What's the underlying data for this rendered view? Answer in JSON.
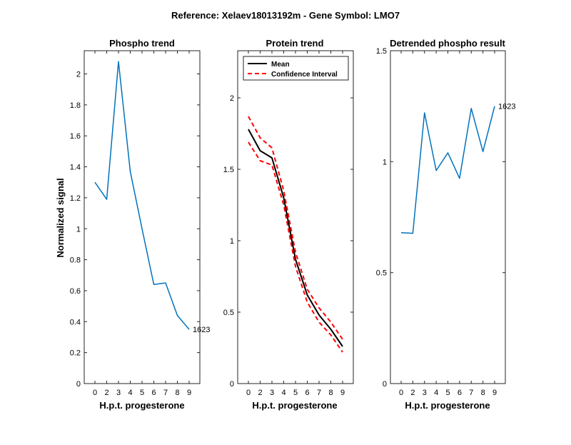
{
  "suptitle": "Reference:  Xelaev18013192m - Gene Symbol:  LMO7",
  "colors": {
    "series": "#0072BD",
    "mean": "#000000",
    "ci": "#FF0000",
    "axis": "#262626"
  },
  "chart_data": [
    {
      "type": "line",
      "title": "Phospho trend",
      "xlabel": "H.p.t. progesterone",
      "ylabel": "Normalized signal",
      "categories": [
        "0",
        "2",
        "3",
        "4",
        "5",
        "6",
        "7",
        "8",
        "9"
      ],
      "ylim": [
        0,
        2.15
      ],
      "yticks": [
        0,
        0.2,
        0.4,
        0.6,
        0.8,
        1,
        1.2,
        1.4,
        1.6,
        1.8,
        2
      ],
      "ytick_labels": [
        "0",
        "0.2",
        "0.4",
        "0.6",
        "0.8",
        "1",
        "1.2",
        "1.4",
        "1.6",
        "1.8",
        "2"
      ],
      "series": [
        {
          "name": "1623",
          "values": [
            1.3,
            1.19,
            2.08,
            1.37,
            1.0,
            0.64,
            0.65,
            0.44,
            0.35
          ]
        }
      ],
      "end_label": "1623"
    },
    {
      "type": "line",
      "title": "Protein trend",
      "xlabel": "H.p.t. progesterone",
      "ylabel": "",
      "categories": [
        "0",
        "2",
        "3",
        "4",
        "5",
        "6",
        "7",
        "8",
        "9"
      ],
      "ylim": [
        0,
        2.33
      ],
      "yticks": [
        0,
        0.5,
        1,
        1.5,
        2
      ],
      "ytick_labels": [
        "0",
        "0.5",
        "1",
        "1.5",
        "2"
      ],
      "series": [
        {
          "name": "Mean",
          "values": [
            1.78,
            1.63,
            1.58,
            1.3,
            0.87,
            0.62,
            0.48,
            0.38,
            0.26
          ]
        },
        {
          "name": "CI upper",
          "values": [
            1.87,
            1.72,
            1.65,
            1.35,
            0.92,
            0.66,
            0.53,
            0.43,
            0.31
          ]
        },
        {
          "name": "CI lower",
          "values": [
            1.69,
            1.56,
            1.53,
            1.25,
            0.82,
            0.57,
            0.43,
            0.34,
            0.22
          ]
        }
      ],
      "legend": {
        "position": "top-left",
        "entries": [
          "Mean",
          "Confidence Interval"
        ]
      }
    },
    {
      "type": "line",
      "title": "Detrended phospho result",
      "xlabel": "H.p.t. progesterone",
      "ylabel": "",
      "categories": [
        "0",
        "2",
        "3",
        "4",
        "5",
        "6",
        "7",
        "8",
        "9"
      ],
      "ylim": [
        0,
        1.5
      ],
      "yticks": [
        0,
        0.5,
        1,
        1.5
      ],
      "ytick_labels": [
        "0",
        "0.5",
        "1",
        "1.5"
      ],
      "series": [
        {
          "name": "1623",
          "values": [
            0.68,
            0.677,
            1.22,
            0.96,
            1.04,
            0.925,
            1.24,
            1.045,
            1.25
          ]
        }
      ],
      "end_label": "1623"
    }
  ]
}
